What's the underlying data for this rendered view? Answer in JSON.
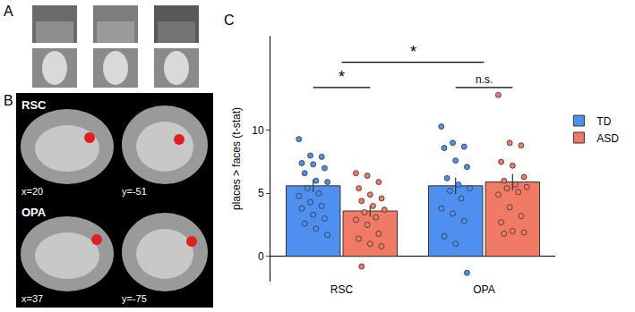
{
  "figure": {
    "panel_labels": [
      "A",
      "B",
      "C"
    ],
    "brain_panels": [
      {
        "region": "RSC",
        "slices": [
          "x=20",
          "y=-51"
        ]
      },
      {
        "region": "OPA",
        "slices": [
          "x=37",
          "y=-75"
        ]
      }
    ]
  },
  "chart_data": {
    "type": "bar",
    "y_label": "places > faces (t-stat)",
    "categories": [
      "RSC",
      "OPA"
    ],
    "series": [
      {
        "name": "TD",
        "color": "#4f8ff0",
        "values": [
          5.6,
          5.6
        ],
        "errors": [
          0.5,
          0.65
        ],
        "points": [
          [
            9.3,
            8.0,
            7.9,
            7.4,
            7.3,
            7.0,
            6.6,
            6.0,
            5.9,
            5.4,
            5.0,
            4.8,
            4.3,
            4.0,
            3.8,
            3.3,
            3.0,
            2.6,
            2.2,
            1.7
          ],
          [
            10.3,
            9.0,
            8.7,
            8.6,
            7.6,
            7.1,
            6.2,
            5.7,
            5.4,
            5.2,
            4.6,
            3.8,
            3.4,
            2.8,
            1.6,
            1.0,
            -1.3
          ]
        ]
      },
      {
        "name": "ASD",
        "color": "#f07a64",
        "values": [
          3.6,
          5.9
        ],
        "errors": [
          0.45,
          0.65
        ],
        "points": [
          [
            6.6,
            6.4,
            5.9,
            5.4,
            4.9,
            4.6,
            4.4,
            4.0,
            3.7,
            3.5,
            3.1,
            2.9,
            2.5,
            1.8,
            1.4,
            1.0,
            0.8,
            -0.8
          ],
          [
            12.8,
            9.0,
            8.8,
            7.5,
            7.2,
            6.3,
            6.0,
            5.7,
            5.5,
            5.4,
            5.1,
            4.9,
            3.9,
            3.2,
            2.7,
            2.0,
            1.9,
            1.8
          ]
        ]
      }
    ],
    "comparisons": [
      {
        "text": "*",
        "from": {
          "category": "RSC",
          "series": "TD"
        },
        "to": {
          "category": "RSC",
          "series": "ASD"
        },
        "y": 13.4
      },
      {
        "text": "n.s.",
        "from": {
          "category": "OPA",
          "series": "TD"
        },
        "to": {
          "category": "OPA",
          "series": "ASD"
        },
        "y": 13.4
      },
      {
        "text": "*",
        "from": {
          "category": "RSC"
        },
        "to": {
          "category": "OPA"
        },
        "y": 15.4
      }
    ],
    "ylim": [
      -2,
      17.5
    ],
    "yticks": [
      0,
      5,
      10
    ],
    "grid": false,
    "legend": "right"
  }
}
